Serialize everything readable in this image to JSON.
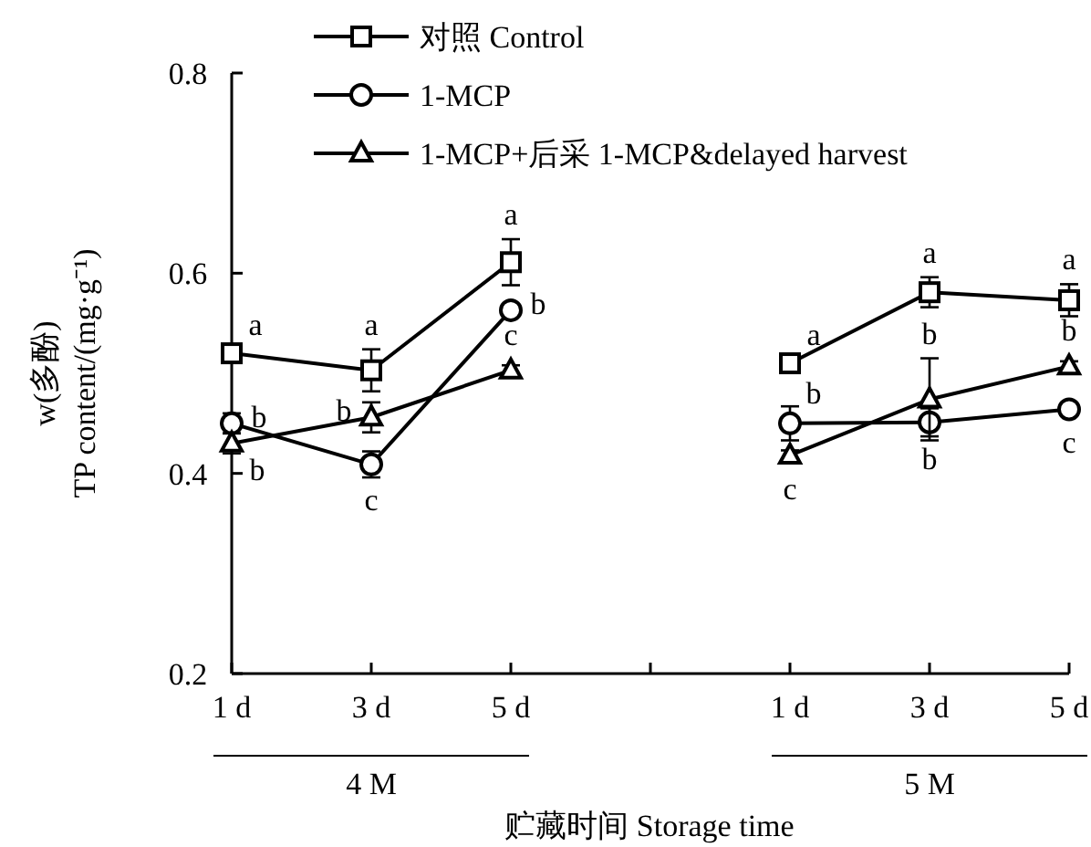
{
  "chart_data": {
    "type": "line",
    "categories": [
      "1 d",
      "3 d",
      "5 d",
      null,
      "1 d",
      "3 d",
      "5 d"
    ],
    "xlabel": "贮藏时间 Storage time",
    "ylabel": "w(多酚)\nTP content/(mg·g⁻¹)",
    "ylim": [
      0.2,
      0.8
    ],
    "yticks": [
      0.2,
      0.4,
      0.6,
      0.8
    ],
    "legend": "top",
    "annotations": [
      "4 M",
      "5 M"
    ],
    "series": [
      {
        "name": "对照 Control",
        "color": "#000000",
        "marker": "square",
        "values": [
          0.52,
          0.503,
          0.611,
          null,
          0.51,
          0.581,
          0.573
        ],
        "errors": [
          0.005,
          0.021,
          0.023,
          null,
          0.005,
          0.015,
          0.016
        ],
        "value_labels": [
          "a",
          "a",
          "a",
          null,
          "a",
          "a",
          "a"
        ]
      },
      {
        "name": "1-MCP",
        "color": "#000000",
        "marker": "circle",
        "values": [
          0.45,
          0.409,
          0.563,
          null,
          0.45,
          0.451,
          0.464
        ],
        "errors": [
          0.01,
          0.013,
          0.005,
          null,
          0.017,
          0.014,
          0.005
        ],
        "value_labels": [
          "b",
          "c",
          "b",
          null,
          "b",
          "b",
          "c"
        ]
      },
      {
        "name": "1-MCP+后采 1-MCP&delayed harvest",
        "color": "#000000",
        "marker": "triangle",
        "values": [
          0.43,
          0.456,
          0.503,
          null,
          0.418,
          0.474,
          0.507
        ],
        "errors": [
          0.01,
          0.015,
          0.005,
          null,
          0.005,
          0.041,
          0.005
        ],
        "value_labels": [
          "b",
          "b",
          "c",
          null,
          "c",
          "b",
          "b"
        ]
      }
    ]
  }
}
